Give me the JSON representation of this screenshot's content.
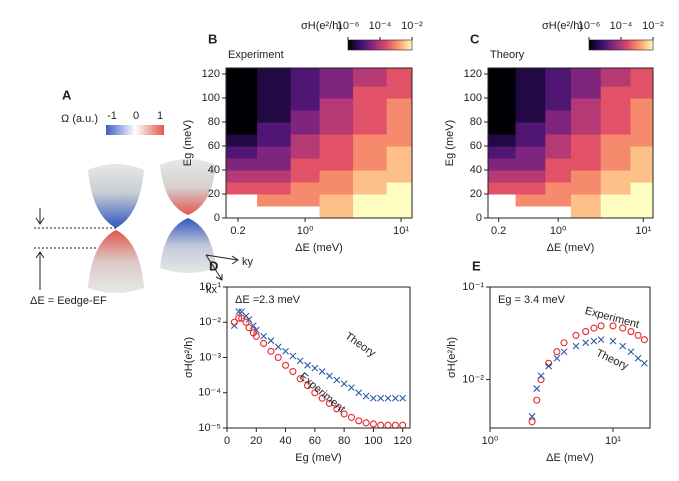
{
  "diagram": {
    "panel": "A",
    "colorbar_label": "Ω (a.u.)",
    "colorbar_ticks": [
      -1,
      0,
      1
    ],
    "ky": "ky",
    "kx": "kx",
    "gap_label": "ΔE = Eedge-EF"
  },
  "chart_data": [
    {
      "type": "heatmap",
      "panel": "B",
      "title": "Experiment",
      "xlabel": "ΔE (meV)",
      "ylabel": "Eg (meV)",
      "xscale": "log",
      "xlim": [
        0.15,
        13
      ],
      "xticks": [
        0.2,
        {
          "value": 1,
          "label": "10⁰"
        },
        {
          "value": 10,
          "label": "10¹"
        }
      ],
      "ylim": [
        0,
        125
      ],
      "yticks": [
        0,
        20,
        40,
        60,
        80,
        100,
        120
      ],
      "x": [
        0.2,
        0.5,
        1,
        2,
        5,
        10
      ],
      "y": [
        5,
        15,
        25,
        35,
        45,
        55,
        65,
        75,
        85,
        95,
        105,
        115
      ],
      "z": [
        [
          null,
          null,
          null,
          0.003,
          0.01,
          0.01
        ],
        [
          null,
          0.001,
          0.001,
          0.003,
          0.01,
          0.01
        ],
        [
          0.0003,
          0.0003,
          0.001,
          0.001,
          0.003,
          0.01
        ],
        [
          0.0001,
          0.0001,
          0.0003,
          0.001,
          0.003,
          0.003
        ],
        [
          3e-05,
          3e-05,
          0.0003,
          0.0003,
          0.001,
          0.003
        ],
        [
          1e-05,
          3e-05,
          0.0001,
          0.0003,
          0.001,
          0.003
        ],
        [
          3e-06,
          1e-05,
          0.0001,
          0.0003,
          0.001,
          0.001
        ],
        [
          1e-06,
          1e-05,
          3e-05,
          0.0001,
          0.0003,
          0.001
        ],
        [
          1e-06,
          3e-06,
          3e-05,
          0.0001,
          0.0003,
          0.001
        ],
        [
          1e-06,
          3e-06,
          1e-05,
          0.0001,
          0.0003,
          0.001
        ],
        [
          1e-06,
          3e-06,
          1e-05,
          3e-05,
          0.0003,
          0.0003
        ],
        [
          1e-06,
          3e-06,
          1e-05,
          3e-05,
          0.0001,
          0.0003
        ]
      ],
      "clabel": "σH(e²/h)",
      "clim": [
        1e-06,
        0.01
      ],
      "cticks": [
        {
          "value": 1e-06,
          "label": "10⁻⁶"
        },
        {
          "value": 0.0001,
          "label": "10⁻⁴"
        },
        {
          "value": 0.01,
          "label": "10⁻²"
        }
      ],
      "colormap": [
        "#000004",
        "#3b0f70",
        "#8c2981",
        "#de4968",
        "#fe9f6d",
        "#fcfdbf"
      ]
    },
    {
      "type": "heatmap",
      "panel": "C",
      "title": "Theory",
      "xlabel": "ΔE (meV)",
      "ylabel": "Eg (meV)",
      "xscale": "log",
      "xlim": [
        0.15,
        13
      ],
      "xticks": [
        0.2,
        {
          "value": 1,
          "label": "10⁰"
        },
        {
          "value": 10,
          "label": "10¹"
        }
      ],
      "ylim": [
        0,
        125
      ],
      "yticks": [
        0,
        20,
        40,
        60,
        80,
        100,
        120
      ],
      "x": [
        0.2,
        0.5,
        1,
        2,
        5,
        10
      ],
      "y": [
        5,
        15,
        25,
        35,
        45,
        55,
        65,
        75,
        85,
        95,
        105,
        115
      ],
      "z": [
        [
          null,
          null,
          null,
          0.003,
          0.01,
          0.01
        ],
        [
          null,
          0.001,
          0.001,
          0.003,
          0.01,
          0.01
        ],
        [
          0.0003,
          0.0003,
          0.001,
          0.001,
          0.003,
          0.01
        ],
        [
          0.0001,
          0.0001,
          0.0003,
          0.001,
          0.003,
          0.003
        ],
        [
          3e-05,
          3e-05,
          0.0003,
          0.0003,
          0.001,
          0.003
        ],
        [
          1e-05,
          3e-05,
          0.0001,
          0.0003,
          0.001,
          0.003
        ],
        [
          3e-06,
          1e-05,
          0.0001,
          0.0003,
          0.001,
          0.001
        ],
        [
          1e-06,
          1e-05,
          3e-05,
          0.0001,
          0.0003,
          0.001
        ],
        [
          1e-06,
          3e-06,
          3e-05,
          0.0001,
          0.0003,
          0.001
        ],
        [
          1e-06,
          3e-06,
          1e-05,
          0.0001,
          0.0003,
          0.001
        ],
        [
          1e-06,
          3e-06,
          1e-05,
          3e-05,
          0.0003,
          0.0003
        ],
        [
          1e-06,
          3e-06,
          1e-05,
          3e-05,
          0.0001,
          0.0003
        ]
      ],
      "clabel": "σH(e²/h)",
      "clim": [
        1e-06,
        0.01
      ],
      "cticks": [
        {
          "value": 1e-06,
          "label": "10⁻⁶"
        },
        {
          "value": 0.0001,
          "label": "10⁻⁴"
        },
        {
          "value": 0.01,
          "label": "10⁻²"
        }
      ],
      "colormap": [
        "#000004",
        "#3b0f70",
        "#8c2981",
        "#de4968",
        "#fe9f6d",
        "#fcfdbf"
      ]
    },
    {
      "type": "scatter",
      "panel": "D",
      "annotation": "ΔE =2.3 meV",
      "xlabel": "Eg (meV)",
      "ylabel": "σH(e²/h)",
      "xlim": [
        0,
        125
      ],
      "xticks": [
        0,
        20,
        40,
        60,
        80,
        100,
        120
      ],
      "yscale": "log",
      "ylim": [
        1e-05,
        0.1
      ],
      "yticks": [
        {
          "value": 1e-05,
          "label": "10⁻⁵"
        },
        {
          "value": 0.0001,
          "label": "10⁻⁴"
        },
        {
          "value": 0.001,
          "label": "10⁻³"
        },
        {
          "value": 0.01,
          "label": "10⁻²"
        },
        {
          "value": 0.1,
          "label": "10⁻¹"
        }
      ],
      "x": [
        5,
        8,
        10,
        13,
        15,
        18,
        20,
        25,
        30,
        35,
        40,
        45,
        50,
        55,
        60,
        65,
        70,
        75,
        80,
        85,
        90,
        95,
        100,
        105,
        110,
        115,
        120
      ],
      "series": [
        {
          "name": "Theory",
          "color": "#2a5caa",
          "marker": "x",
          "values": [
            0.008,
            0.02,
            0.02,
            0.015,
            0.012,
            0.008,
            0.006,
            0.004,
            0.003,
            0.002,
            0.0015,
            0.0011,
            0.0008,
            0.0006,
            0.0005,
            0.0004,
            0.0003,
            0.00023,
            0.00018,
            0.00014,
            0.0001,
            8e-05,
            7e-05,
            7e-05,
            7e-05,
            7e-05,
            7e-05
          ]
        },
        {
          "name": "Experiment",
          "color": "#e8262a",
          "marker": "o",
          "values": [
            0.01,
            0.013,
            0.013,
            0.01,
            0.007,
            0.005,
            0.004,
            0.0025,
            0.0015,
            0.001,
            0.0006,
            0.0004,
            0.00025,
            0.00016,
            0.0001,
            7e-05,
            5e-05,
            3.5e-05,
            2.5e-05,
            2e-05,
            1.6e-05,
            1.4e-05,
            1.3e-05,
            1.2e-05,
            1.2e-05,
            1.2e-05,
            1.2e-05
          ]
        }
      ]
    },
    {
      "type": "scatter",
      "panel": "E",
      "annotation": "Eg = 3.4 meV",
      "xlabel": "ΔE (meV)",
      "ylabel": "σH(e²/h)",
      "xscale": "log",
      "xlim": [
        1,
        20
      ],
      "xticks": [
        {
          "value": 1,
          "label": "10⁰"
        },
        {
          "value": 10,
          "label": "10¹"
        }
      ],
      "yscale": "log",
      "ylim": [
        0.003,
        0.1
      ],
      "yticks": [
        {
          "value": 0.01,
          "label": "10⁻²"
        },
        {
          "value": 0.1,
          "label": "10⁻¹"
        }
      ],
      "x": [
        2.2,
        2.4,
        2.6,
        3,
        3.5,
        4,
        5,
        6,
        7,
        8,
        10,
        12,
        14,
        16,
        18
      ],
      "series": [
        {
          "name": "Experiment",
          "color": "#e8262a",
          "marker": "o",
          "values": [
            0.0035,
            0.006,
            0.01,
            0.015,
            0.02,
            0.025,
            0.03,
            0.033,
            0.036,
            0.038,
            0.038,
            0.036,
            0.033,
            0.03,
            0.027
          ]
        },
        {
          "name": "Theory",
          "color": "#2a5caa",
          "marker": "x",
          "values": [
            0.004,
            0.008,
            0.011,
            0.014,
            0.017,
            0.02,
            0.023,
            0.025,
            0.026,
            0.027,
            0.026,
            0.023,
            0.02,
            0.017,
            0.015
          ]
        }
      ]
    }
  ]
}
